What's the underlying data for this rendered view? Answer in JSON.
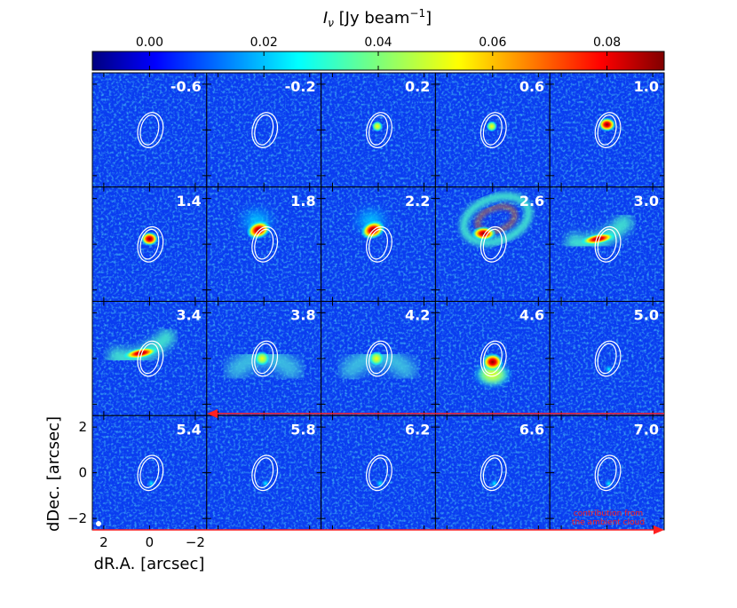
{
  "chart_data": {
    "type": "heatmap",
    "layout": "channel-map grid, 4 rows x 5 columns",
    "colorbar": {
      "label": "I_ν [Jy beam⁻¹]",
      "label_main": "I",
      "label_sub": "ν",
      "label_unit": " [Jy beam",
      "label_exp": "−1",
      "label_close": "]",
      "colormap": "jet",
      "range": [
        -0.01,
        0.09
      ],
      "ticks": [
        0.0,
        0.02,
        0.04,
        0.06,
        0.08
      ],
      "tick_labels": [
        "0.00",
        "0.02",
        "0.04",
        "0.06",
        "0.08"
      ]
    },
    "xlabel": "dR.A. [arcsec]",
    "ylabel": "dDec. [arcsec]",
    "xticks": [
      2,
      0,
      -2
    ],
    "xtick_labels": [
      "2",
      "0",
      "−2"
    ],
    "yticks": [
      2,
      0,
      -2
    ],
    "ytick_labels": [
      "2",
      "0",
      "−2"
    ],
    "xlim": [
      2.5,
      -2.5
    ],
    "ylim": [
      -2.5,
      2.5
    ],
    "panels": [
      {
        "label": "-0.6",
        "emission": "weak"
      },
      {
        "label": "-0.2",
        "emission": "weak"
      },
      {
        "label": "0.2",
        "emission": "compact"
      },
      {
        "label": "0.6",
        "emission": "compact"
      },
      {
        "label": "1.0",
        "emission": "compact-peak"
      },
      {
        "label": "1.4",
        "emission": "compact-peak"
      },
      {
        "label": "1.8",
        "emission": "extended"
      },
      {
        "label": "2.2",
        "emission": "extended"
      },
      {
        "label": "2.6",
        "emission": "ring"
      },
      {
        "label": "3.0",
        "emission": "arc"
      },
      {
        "label": "3.4",
        "emission": "arc"
      },
      {
        "label": "3.8",
        "emission": "arc-lower"
      },
      {
        "label": "4.2",
        "emission": "arc-lower"
      },
      {
        "label": "4.6",
        "emission": "compact-lower"
      },
      {
        "label": "5.0",
        "emission": "faint"
      },
      {
        "label": "5.4",
        "emission": "faint"
      },
      {
        "label": "5.8",
        "emission": "faint"
      },
      {
        "label": "6.2",
        "emission": "faint"
      },
      {
        "label": "6.6",
        "emission": "faint"
      },
      {
        "label": "7.0",
        "emission": "faint"
      }
    ],
    "annotation": {
      "text_line1": "contribution from",
      "text_line2": "the ambient cloud",
      "color": "#ff0000"
    },
    "contour_color": "#ffffff",
    "panel_label_color": "#ffffff"
  }
}
